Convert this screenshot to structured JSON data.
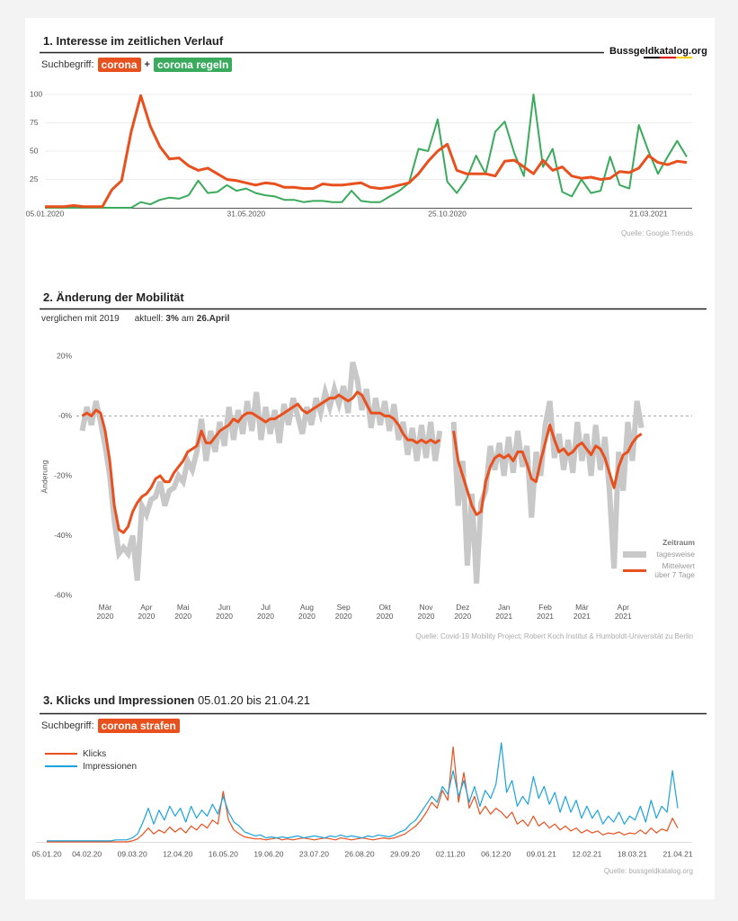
{
  "brand": "Bussgeldkatalog.org",
  "chart_data": [
    {
      "type": "line",
      "title": "1. Interesse im zeitlichen Verlauf",
      "search_label": "Suchbegriff:",
      "joiner": "+",
      "source": "Quelle: Google Trends",
      "categories": [
        "05.01.2020",
        null,
        null,
        null,
        null,
        null,
        null,
        null,
        null,
        null,
        null,
        null,
        null,
        null,
        null,
        null,
        null,
        null,
        null,
        null,
        null,
        "31.05.2020",
        null,
        null,
        null,
        null,
        null,
        null,
        null,
        null,
        null,
        null,
        null,
        null,
        null,
        null,
        null,
        null,
        null,
        null,
        null,
        null,
        "25.10.2020",
        null,
        null,
        null,
        null,
        null,
        null,
        null,
        null,
        null,
        null,
        null,
        null,
        null,
        null,
        null,
        null,
        null,
        null,
        null,
        null,
        "21.03.2021",
        null,
        null,
        null,
        null
      ],
      "series": [
        {
          "name": "corona",
          "color": "#e8501e",
          "values": [
            1,
            1,
            1,
            2,
            1,
            1,
            1,
            16,
            24,
            67,
            99,
            72,
            54,
            43,
            44,
            37,
            33,
            35,
            30,
            25,
            24,
            22,
            20,
            22,
            21,
            18,
            18,
            17,
            17,
            21,
            20,
            20,
            21,
            22,
            18,
            17,
            18,
            20,
            22,
            30,
            41,
            50,
            56,
            33,
            30,
            30,
            30,
            28,
            41,
            42,
            36,
            30,
            42,
            33,
            36,
            28,
            26,
            27,
            25,
            26,
            32,
            31,
            35,
            46,
            40,
            38,
            41,
            40
          ]
        },
        {
          "name": "corona regeln",
          "color": "#3aaa5c",
          "values": [
            0,
            0,
            0,
            0,
            0,
            0,
            0,
            0,
            0,
            0,
            5,
            3,
            7,
            9,
            8,
            11,
            24,
            13,
            14,
            20,
            15,
            17,
            13,
            11,
            10,
            7,
            7,
            5,
            6,
            6,
            5,
            5,
            15,
            6,
            5,
            5,
            10,
            15,
            22,
            52,
            50,
            78,
            23,
            13,
            25,
            46,
            30,
            67,
            76,
            48,
            28,
            100,
            36,
            52,
            14,
            10,
            25,
            13,
            15,
            45,
            20,
            17,
            73,
            50,
            30,
            45,
            59,
            45
          ]
        }
      ],
      "ylim": [
        0,
        100
      ],
      "yticks": [
        25,
        50,
        75,
        100
      ],
      "grid": true
    },
    {
      "type": "line",
      "title": "2. Änderung der Mobilität",
      "subtitle": {
        "comparison": "verglichen mit 2019",
        "current_label": "aktuell:",
        "current_value": "3%",
        "current_date_prefix": "am",
        "current_date": "26.April"
      },
      "ylabel": "Änderung",
      "legend_title": "Zeitraum",
      "legend": "bottom-right",
      "zero_line": "dashed",
      "grid": false,
      "source": "Quelle: Covid-19 Mobility Project; Robert Koch Institut & Humboldt-Universität zu Berlin",
      "categories": [
        null,
        null,
        null,
        null,
        null,
        "Mär 2020",
        null,
        null,
        null,
        null,
        null,
        null,
        null,
        null,
        "Apr 2020",
        null,
        null,
        null,
        null,
        null,
        null,
        null,
        "Mai 2020",
        null,
        null,
        null,
        null,
        null,
        null,
        null,
        null,
        "Jun 2020",
        null,
        null,
        null,
        null,
        null,
        null,
        null,
        null,
        "Jul 2020",
        null,
        null,
        null,
        null,
        null,
        null,
        null,
        null,
        "Aug 2020",
        null,
        null,
        null,
        null,
        null,
        null,
        null,
        "Sep 2020",
        null,
        null,
        null,
        null,
        null,
        null,
        null,
        null,
        "Okt 2020",
        null,
        null,
        null,
        null,
        null,
        null,
        null,
        null,
        "Nov 2020",
        null,
        null,
        null,
        null,
        null,
        null,
        null,
        "Dez 2020",
        null,
        null,
        null,
        null,
        null,
        null,
        null,
        null,
        "Jan 2021",
        null,
        null,
        null,
        null,
        null,
        null,
        null,
        null,
        "Feb 2021",
        null,
        null,
        null,
        null,
        null,
        null,
        null,
        "Mär 2021",
        null,
        null,
        null,
        null,
        null,
        null,
        null,
        null,
        "Apr 2021",
        null,
        null,
        null,
        null
      ],
      "series": [
        {
          "name": "tagesweise",
          "color": "#c8c8c8",
          "style": "band",
          "values": [
            -5,
            3,
            -3,
            5,
            -2,
            -10,
            -20,
            -35,
            -46,
            -44,
            -46,
            -40,
            -55,
            -30,
            -33,
            -28,
            -27,
            -22,
            -30,
            -25,
            -24,
            -20,
            -22,
            -15,
            -18,
            -12,
            -1,
            -15,
            -5,
            -12,
            -2,
            -10,
            3,
            -8,
            2,
            -6,
            5,
            -5,
            8,
            -8,
            3,
            -6,
            2,
            -9,
            4,
            -3,
            6,
            0,
            -6,
            3,
            -3,
            6,
            1,
            8,
            3,
            9,
            4,
            10,
            1,
            18,
            12,
            2,
            9,
            -4,
            6,
            -3,
            5,
            -5,
            4,
            -8,
            -2,
            -13,
            -4,
            -15,
            -3,
            -14,
            -2,
            -15,
            -5,
            null,
            null,
            -2,
            -30,
            -15,
            -50,
            -26,
            -56,
            -29,
            -25,
            -10,
            -18,
            -9,
            -20,
            -7,
            -19,
            -5,
            -17,
            -10,
            -34,
            -12,
            -20,
            -3,
            5,
            -14,
            -6,
            -18,
            -8,
            -19,
            -2,
            -15,
            -6,
            -20,
            -3,
            -18,
            -7,
            -25,
            -51,
            -12,
            -25,
            -2,
            -15,
            5,
            -4
          ]
        },
        {
          "name": "Mittelwert über 7 Tage",
          "color": "#e8501e",
          "style": "line",
          "values": [
            0,
            1,
            0,
            2,
            1,
            -5,
            -15,
            -30,
            -38,
            -39,
            -37,
            -32,
            -29,
            -27,
            -26,
            -24,
            -21,
            -20,
            -22,
            -22,
            -19,
            -17,
            -15,
            -12,
            -11,
            -10,
            -5,
            -9,
            -9,
            -7,
            -5,
            -4,
            -3,
            -1,
            -2,
            0,
            1,
            1,
            0,
            -1,
            -2,
            -1,
            -1,
            0,
            1,
            2,
            3,
            4,
            2,
            1,
            2,
            3,
            4,
            5,
            6,
            6,
            7,
            6,
            5,
            6,
            8,
            7,
            4,
            1,
            1,
            1,
            0,
            0,
            -1,
            -3,
            -6,
            -8,
            -8,
            -9,
            -8,
            -9,
            -8,
            -9,
            -8,
            null,
            null,
            -5,
            -15,
            -20,
            -25,
            -30,
            -33,
            -32,
            -22,
            -17,
            -14,
            -13,
            -14,
            -13,
            -15,
            -12,
            -12,
            -16,
            -21,
            -22,
            -15,
            -9,
            -3,
            -8,
            -12,
            -11,
            -13,
            -12,
            -10,
            -9,
            -11,
            -13,
            -10,
            -11,
            -14,
            -19,
            -24,
            -17,
            -13,
            -12,
            -9,
            -7,
            -6
          ]
        }
      ],
      "ylim": [
        -60,
        20
      ],
      "yticks": [
        {
          "value": -60,
          "label": "-60%"
        },
        {
          "value": -40,
          "label": "-40%"
        },
        {
          "value": -20,
          "label": "-20%"
        },
        {
          "value": 0,
          "label": "-0%"
        },
        {
          "value": 20,
          "label": "20%"
        }
      ]
    },
    {
      "type": "line",
      "title": "3. Klicks und Impressionen",
      "subtitle": "05.01.20 bis 21.04.21",
      "search_label": "Suchbegriff:",
      "search_term": "corona strafen",
      "search_term_color": "#e8501e",
      "source": "Quelle: bussgeldkatalog.org",
      "x": [
        "05.01.20",
        "09.01.20",
        "13.01.20",
        "17.01.20",
        "21.01.20",
        "25.01.20",
        "29.01.20",
        "02.02.20",
        "06.02.20",
        "10.02.20",
        "14.02.20",
        "18.02.20",
        "22.02.20",
        "26.02.20",
        "01.03.20",
        "05.03.20",
        "09.03.20",
        "13.03.20",
        "17.03.20",
        "21.03.20",
        "25.03.20",
        "29.03.20",
        "02.04.20",
        "06.04.20",
        "10.04.20",
        "14.04.20",
        "18.04.20",
        "22.04.20",
        "26.04.20",
        "30.04.20",
        "04.05.20",
        "08.05.20",
        "12.05.20",
        "16.05.20",
        "20.05.20",
        "24.05.20",
        "28.05.20",
        "01.06.20",
        "05.06.20",
        "09.06.20",
        "13.06.20",
        "17.06.20",
        "21.06.20",
        "25.06.20",
        "29.06.20",
        "03.07.20",
        "07.07.20",
        "11.07.20",
        "15.07.20",
        "19.07.20",
        "23.07.20",
        "27.07.20",
        "31.07.20",
        "04.08.20",
        "08.08.20",
        "12.08.20",
        "16.08.20",
        "20.08.20",
        "24.08.20",
        "28.08.20",
        "01.09.20",
        "05.09.20",
        "09.09.20",
        "13.09.20",
        "17.09.20",
        "21.09.20",
        "25.09.20",
        "29.09.20",
        "03.10.20",
        "07.10.20",
        "11.10.20",
        "15.10.20",
        "19.10.20",
        "23.10.20",
        "27.10.20",
        "31.10.20",
        "04.11.20",
        "08.11.20",
        "12.11.20",
        "16.11.20",
        "20.11.20",
        "24.11.20",
        "28.11.20",
        "02.12.20",
        "06.12.20",
        "10.12.20",
        "14.12.20",
        "18.12.20",
        "22.12.20",
        "26.12.20",
        "30.12.20",
        "03.01.21",
        "07.01.21",
        "11.01.21",
        "15.01.21",
        "19.01.21",
        "23.01.21",
        "27.01.21",
        "31.01.21",
        "04.02.21",
        "08.02.21",
        "12.02.21",
        "16.02.21",
        "20.02.21",
        "24.02.21",
        "28.02.21",
        "04.03.21",
        "08.03.21",
        "12.03.21",
        "16.03.21",
        "20.03.21",
        "24.03.21",
        "28.03.21",
        "01.04.21",
        "05.04.21",
        "09.04.21",
        "13.04.21",
        "17.04.21",
        "21.04.21"
      ],
      "series": [
        {
          "name": "Klicks",
          "color": "#e8501e",
          "values": [
            0,
            0,
            0,
            0,
            0,
            0,
            0,
            0,
            0,
            0,
            0,
            0,
            0,
            0,
            0,
            0,
            1,
            3,
            8,
            14,
            8,
            12,
            9,
            15,
            10,
            14,
            9,
            16,
            12,
            18,
            14,
            22,
            18,
            51,
            22,
            12,
            8,
            5,
            4,
            3,
            3,
            2,
            3,
            4,
            2,
            3,
            2,
            3,
            4,
            3,
            2,
            3,
            4,
            3,
            2,
            4,
            3,
            2,
            3,
            4,
            3,
            2,
            3,
            4,
            3,
            4,
            6,
            8,
            12,
            16,
            22,
            30,
            40,
            34,
            52,
            42,
            96,
            40,
            70,
            34,
            46,
            28,
            36,
            28,
            34,
            30,
            24,
            30,
            18,
            22,
            16,
            26,
            16,
            20,
            14,
            18,
            12,
            16,
            11,
            14,
            9,
            12,
            9,
            11,
            7,
            9,
            8,
            10,
            7,
            9,
            8,
            12,
            8,
            14,
            9,
            13,
            11,
            24,
            14
          ]
        },
        {
          "name": "Impressionen",
          "color": "#1ba3dc",
          "values": [
            1,
            1,
            1,
            1,
            1,
            1,
            1,
            1,
            1,
            1,
            1,
            1,
            1,
            2,
            2,
            2,
            4,
            8,
            20,
            34,
            18,
            32,
            22,
            36,
            26,
            34,
            20,
            36,
            24,
            32,
            26,
            38,
            28,
            46,
            30,
            20,
            16,
            10,
            8,
            6,
            7,
            4,
            5,
            4,
            5,
            4,
            5,
            6,
            4,
            5,
            6,
            5,
            4,
            6,
            5,
            7,
            5,
            6,
            5,
            4,
            6,
            5,
            7,
            6,
            5,
            7,
            10,
            12,
            18,
            22,
            30,
            38,
            46,
            40,
            56,
            48,
            72,
            46,
            62,
            40,
            56,
            36,
            52,
            44,
            58,
            100,
            50,
            62,
            36,
            46,
            38,
            66,
            44,
            56,
            38,
            50,
            30,
            46,
            30,
            42,
            24,
            36,
            24,
            32,
            18,
            26,
            20,
            30,
            18,
            26,
            22,
            36,
            20,
            42,
            24,
            36,
            30,
            72,
            34
          ]
        }
      ],
      "ylim": [
        0,
        100
      ],
      "xticks": [
        "05.01.20",
        "04.02.20",
        "09.03.20",
        "12.04.20",
        "16.05.20",
        "19.06.20",
        "23.07.20",
        "26.08.20",
        "29.09.20",
        "02.11.20",
        "06.12.20",
        "09.01.21",
        "12.02.21",
        "18.03.21",
        "21.04.21"
      ]
    }
  ]
}
